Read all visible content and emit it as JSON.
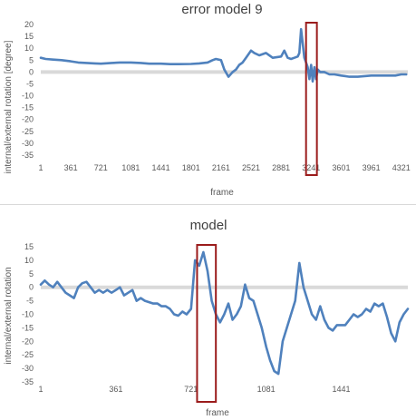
{
  "chart_data": [
    {
      "type": "line",
      "title": "error model 9",
      "xlabel": "frame",
      "ylabel": "internal/external rotation [degree]",
      "xlim": [
        1,
        4400
      ],
      "ylim": [
        -35,
        20
      ],
      "y_ticks": [
        20,
        15,
        10,
        5,
        0,
        -5,
        -10,
        -15,
        -20,
        -25,
        -30,
        -35
      ],
      "x_ticks": [
        1,
        361,
        721,
        1081,
        1441,
        1801,
        2161,
        2521,
        2881,
        3241,
        3601,
        3961,
        4321
      ],
      "zero_band": true,
      "grid": false,
      "line_color": "#4f81bd",
      "highlight_color": "#9b1c1c",
      "highlight_range": [
        3180,
        3310
      ],
      "series": [
        {
          "x": [
            1,
            60,
            150,
            250,
            361,
            450,
            550,
            650,
            721,
            850,
            950,
            1081,
            1200,
            1300,
            1441,
            1550,
            1650,
            1801,
            1900,
            2000,
            2060,
            2100,
            2161,
            2200,
            2250,
            2300,
            2340,
            2380,
            2420,
            2460,
            2521,
            2560,
            2620,
            2700,
            2780,
            2881,
            2920,
            2960,
            3000,
            3040,
            3080,
            3100,
            3120,
            3140,
            3160,
            3180,
            3200,
            3220,
            3241,
            3260,
            3280,
            3300,
            3320,
            3350,
            3400,
            3460,
            3520,
            3601,
            3700,
            3800,
            3961,
            4100,
            4250,
            4321,
            4380
          ],
          "values": [
            6,
            5.5,
            5.2,
            5,
            4.5,
            4,
            3.8,
            3.6,
            3.5,
            3.8,
            4,
            4,
            3.8,
            3.5,
            3.5,
            3.3,
            3.3,
            3.4,
            3.6,
            4,
            5,
            5.5,
            5,
            1,
            -2,
            0,
            1,
            3,
            4,
            6,
            9,
            8,
            7,
            8,
            6,
            6.5,
            9,
            6,
            5.5,
            6,
            6.5,
            8,
            18,
            12,
            6,
            4,
            2,
            -3,
            3,
            -4,
            2,
            -3,
            1,
            0,
            0,
            -1,
            -1,
            -1.5,
            -2,
            -2,
            -1.5,
            -1.5,
            -1.5,
            -1,
            -1
          ]
        }
      ]
    },
    {
      "type": "line",
      "title": "model",
      "xlabel": "frame",
      "ylabel": "internal/external rotation",
      "xlim": [
        1,
        1760
      ],
      "ylim": [
        -35,
        15
      ],
      "y_ticks": [
        15,
        10,
        5,
        0,
        -5,
        -10,
        -15,
        -20,
        -25,
        -30,
        -35
      ],
      "x_ticks": [
        1,
        361,
        721,
        1081,
        1441
      ],
      "zero_band": true,
      "grid": false,
      "line_color": "#4f81bd",
      "highlight_color": "#9b1c1c",
      "highlight_range": [
        750,
        840
      ],
      "series": [
        {
          "x": [
            1,
            20,
            40,
            60,
            80,
            100,
            120,
            140,
            160,
            180,
            200,
            220,
            240,
            260,
            280,
            300,
            320,
            340,
            361,
            380,
            400,
            420,
            440,
            460,
            480,
            500,
            520,
            540,
            560,
            580,
            600,
            620,
            640,
            660,
            680,
            700,
            721,
            740,
            760,
            780,
            800,
            820,
            840,
            860,
            880,
            900,
            920,
            940,
            960,
            980,
            1000,
            1020,
            1040,
            1060,
            1081,
            1100,
            1120,
            1140,
            1160,
            1180,
            1200,
            1220,
            1240,
            1260,
            1280,
            1300,
            1320,
            1340,
            1360,
            1380,
            1400,
            1420,
            1441,
            1460,
            1480,
            1500,
            1520,
            1540,
            1560,
            1580,
            1600,
            1620,
            1640,
            1660,
            1680,
            1700,
            1720,
            1740,
            1760
          ],
          "values": [
            1,
            2.5,
            1,
            0,
            2,
            0,
            -2,
            -3,
            -4,
            0,
            1.5,
            2,
            0,
            -2,
            -1,
            -2,
            -1,
            -2,
            -1,
            0,
            -3,
            -2,
            -1,
            -5,
            -4,
            -5,
            -5.5,
            -6,
            -6,
            -7,
            -7,
            -8,
            -10,
            -10.5,
            -9,
            -10,
            -8,
            10,
            8,
            13,
            6,
            -5,
            -10,
            -13,
            -10,
            -6,
            -12,
            -10,
            -7,
            1,
            -4,
            -5,
            -10,
            -15,
            -22,
            -27,
            -31,
            -32,
            -20,
            -15,
            -10,
            -5,
            9,
            0,
            -5,
            -10,
            -12,
            -7,
            -12,
            -15,
            -16,
            -14,
            -14,
            -14,
            -12,
            -10,
            -11,
            -10,
            -8,
            -9,
            -6,
            -7,
            -6,
            -11,
            -17,
            -20,
            -13,
            -10,
            -8
          ]
        }
      ]
    }
  ]
}
